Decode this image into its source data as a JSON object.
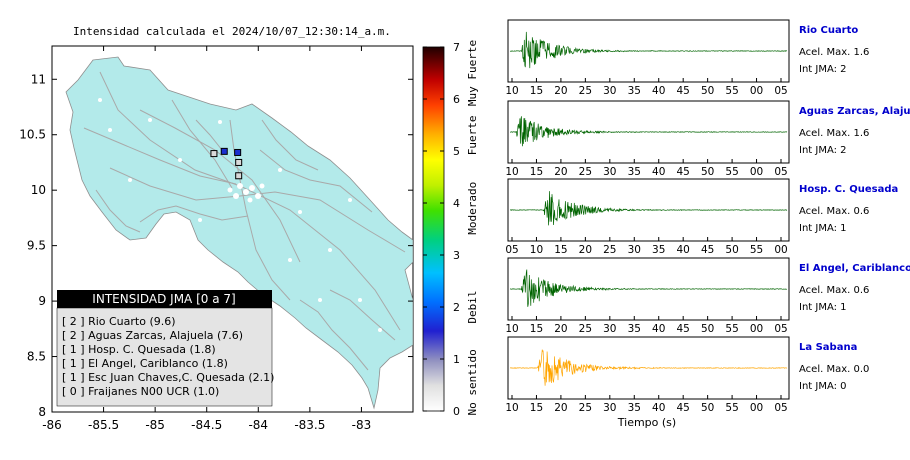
{
  "title": "Intensidad calculada el 2024/10/07_12:30:14_a.m.",
  "colors": {
    "land": "#b3eaea",
    "road": "#a9a9a9",
    "station_box": "#000000",
    "trace_green": "#006400",
    "trace_orange": "#ffa500",
    "station_name": "#0000cc",
    "legend_header_bg": "#000000",
    "legend_body_bg": "#e4e4e4"
  },
  "map": {
    "x_ticks": [
      "-86",
      "-85.5",
      "-85",
      "-84.5",
      "-84",
      "-83.5",
      "-83"
    ],
    "y_ticks": [
      "11",
      "10.5",
      "10",
      "9.5",
      "9",
      "8.5",
      "8"
    ],
    "xlim": [
      -86,
      -82.5
    ],
    "ylim": [
      8,
      11.3
    ],
    "station_markers": [
      {
        "lon": -84.43,
        "lat": 10.33,
        "fill": "#d9d9d9"
      },
      {
        "lon": -84.33,
        "lat": 10.35,
        "fill": "#1c2fd0"
      },
      {
        "lon": -84.2,
        "lat": 10.34,
        "fill": "#1c2fd0"
      },
      {
        "lon": -84.19,
        "lat": 10.25,
        "fill": "#d9d9d9"
      },
      {
        "lon": -84.19,
        "lat": 10.13,
        "fill": "#d9d9d9"
      }
    ]
  },
  "legend": {
    "header": "INTENSIDAD JMA [0 a 7]",
    "items": [
      "[ 2 ] Rio Cuarto (9.6)",
      "[ 2 ] Aguas Zarcas, Alajuela (7.6)",
      "[ 1 ] Hosp. C. Quesada (1.8)",
      "[ 1 ] El Angel, Cariblanco (1.8)",
      "[ 1 ] Esc Juan Chaves,C. Quesada (2.1)",
      "[ 0 ] Fraijanes N00 UCR (1.0)"
    ]
  },
  "colorbar": {
    "ticks": [
      "0",
      "1",
      "2",
      "3",
      "4",
      "5",
      "6",
      "7"
    ],
    "category_labels": [
      "No sentido",
      "Debil",
      "Moderado",
      "Fuerte",
      "Muy Fuerte"
    ],
    "range": [
      0,
      7
    ]
  },
  "seismograms": [
    {
      "station": "Rio Cuarto",
      "accel": "Acel. Max. 1.6",
      "jma": "Int JMA: 2",
      "ticks": [
        "10",
        "15",
        "20",
        "25",
        "30",
        "35",
        "40",
        "45",
        "50",
        "55",
        "00",
        "05"
      ],
      "color": "#006400",
      "onset": 0.04,
      "amp": 0.95
    },
    {
      "station": "Aguas Zarcas, Alajuela",
      "accel": "Acel. Max. 1.6",
      "jma": "Int JMA: 2",
      "ticks": [
        "10",
        "15",
        "20",
        "25",
        "30",
        "35",
        "40",
        "45",
        "50",
        "55",
        "00",
        "05"
      ],
      "color": "#006400",
      "onset": 0.02,
      "amp": 0.75
    },
    {
      "station": "Hosp. C. Quesada",
      "accel": "Acel. Max. 0.6",
      "jma": "Int JMA: 1",
      "ticks": [
        "05",
        "10",
        "15",
        "20",
        "25",
        "30",
        "35",
        "40",
        "45",
        "50",
        "55",
        "00"
      ],
      "color": "#006400",
      "onset": 0.12,
      "amp": 0.85
    },
    {
      "station": "El Angel, Cariblanco",
      "accel": "Acel. Max. 0.6",
      "jma": "Int JMA: 1",
      "ticks": [
        "10",
        "15",
        "20",
        "25",
        "30",
        "35",
        "40",
        "45",
        "50",
        "55",
        "00",
        "05"
      ],
      "color": "#006400",
      "onset": 0.04,
      "amp": 0.9
    },
    {
      "station": "La Sabana",
      "accel": "Acel. Max. 0.0",
      "jma": "Int JMA: 0",
      "ticks": [
        "10",
        "15",
        "20",
        "25",
        "30",
        "35",
        "40",
        "45",
        "50",
        "55",
        "00",
        "05"
      ],
      "color": "#ffa500",
      "onset": 0.1,
      "amp": 0.95
    }
  ],
  "seismo_xlabel": "Tiempo (s)"
}
